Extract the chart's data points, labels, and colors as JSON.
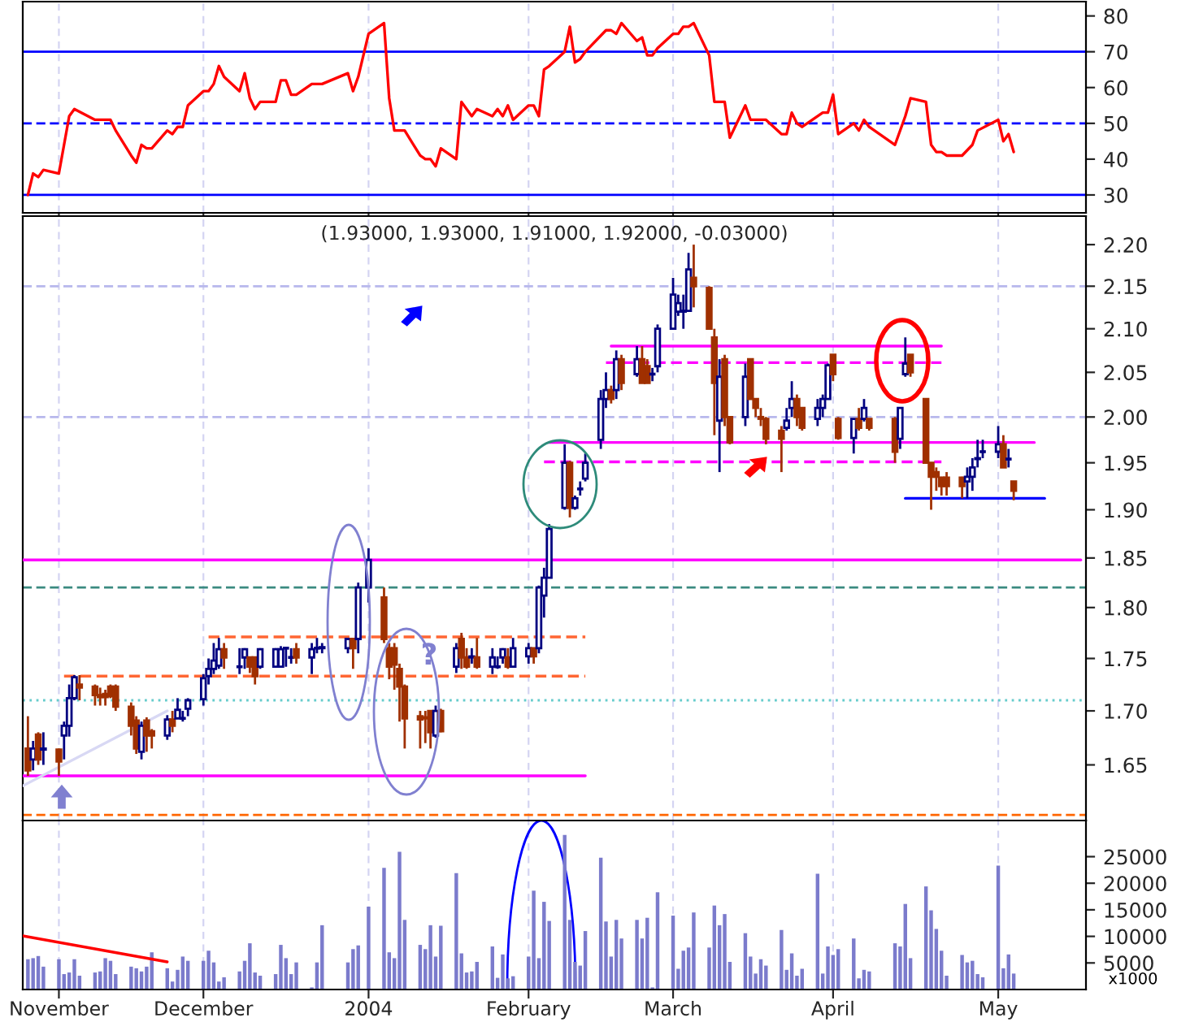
{
  "chart_data": [
    {
      "type": "line",
      "xlim": [
        "2003-10-27",
        "2004-05-20"
      ],
      "ylim": [
        25,
        84
      ],
      "yticks": [
        30,
        40,
        50,
        60,
        70,
        80
      ],
      "grid": "x",
      "tick_labels": "y",
      "xticks": [
        {
          "value": "2003-11-03",
          "label": null
        },
        {
          "value": "2003-12-01",
          "label": null
        },
        {
          "value": "2004-01-02",
          "label": null
        },
        {
          "value": "2004-02-02",
          "label": null
        },
        {
          "value": "2004-03-01",
          "label": null
        },
        {
          "value": "2004-04-01",
          "label": null
        },
        {
          "value": "2004-05-03",
          "label": null
        }
      ],
      "ref_lines": [
        {
          "axis": "y",
          "value": 70,
          "color": "#0000ff",
          "line_style": "solid"
        },
        {
          "axis": "y",
          "value": 50,
          "color": "#0000ff",
          "line_style": "dashed"
        },
        {
          "axis": "y",
          "value": 30,
          "color": "#0000ff",
          "line_style": "solid"
        }
      ],
      "series": [
        {
          "color": "#ff0000",
          "x": [
            "2003-10-28",
            "2003-10-29",
            "2003-10-30",
            "2003-10-31",
            "2003-11-03",
            "2003-11-04",
            "2003-11-05",
            "2003-11-06",
            "2003-11-10",
            "2003-11-11",
            "2003-11-13",
            "2003-11-14",
            "2003-11-17",
            "2003-11-18",
            "2003-11-19",
            "2003-11-20",
            "2003-11-21",
            "2003-11-24",
            "2003-11-25",
            "2003-11-26",
            "2003-11-27",
            "2003-11-28",
            "2003-12-01",
            "2003-12-02",
            "2003-12-03",
            "2003-12-04",
            "2003-12-05",
            "2003-12-08",
            "2003-12-09",
            "2003-12-10",
            "2003-12-11",
            "2003-12-12",
            "2003-12-15",
            "2003-12-16",
            "2003-12-17",
            "2003-12-18",
            "2003-12-19",
            "2003-12-22",
            "2003-12-23",
            "2003-12-24",
            "2003-12-29",
            "2003-12-30",
            "2003-12-31",
            "2004-01-02",
            "2004-01-05",
            "2004-01-06",
            "2004-01-07",
            "2004-01-08",
            "2004-01-09",
            "2004-01-12",
            "2004-01-13",
            "2004-01-14",
            "2004-01-15",
            "2004-01-16",
            "2004-01-19",
            "2004-01-20",
            "2004-01-21",
            "2004-01-22",
            "2004-01-23",
            "2004-01-26",
            "2004-01-27",
            "2004-01-28",
            "2004-01-29",
            "2004-01-30",
            "2004-02-02",
            "2004-02-03",
            "2004-02-04",
            "2004-02-05",
            "2004-02-06",
            "2004-02-09",
            "2004-02-10",
            "2004-02-11",
            "2004-02-12",
            "2004-02-13",
            "2004-02-17",
            "2004-02-18",
            "2004-02-19",
            "2004-02-20",
            "2004-02-23",
            "2004-02-24",
            "2004-02-25",
            "2004-02-26",
            "2004-02-27",
            "2004-03-01",
            "2004-03-02",
            "2004-03-03",
            "2004-03-04",
            "2004-03-05",
            "2004-03-08",
            "2004-03-09",
            "2004-03-11",
            "2004-03-12",
            "2004-03-15",
            "2004-03-16",
            "2004-03-18",
            "2004-03-19",
            "2004-03-22",
            "2004-03-23",
            "2004-03-24",
            "2004-03-25",
            "2004-03-26",
            "2004-03-30",
            "2004-03-31",
            "2004-04-01",
            "2004-04-02",
            "2004-04-05",
            "2004-04-06",
            "2004-04-07",
            "2004-04-08",
            "2004-04-13",
            "2004-04-15",
            "2004-04-16",
            "2004-04-19",
            "2004-04-20",
            "2004-04-21",
            "2004-04-22",
            "2004-04-23",
            "2004-04-26",
            "2004-04-28",
            "2004-04-29",
            "2004-05-03",
            "2004-05-04",
            "2004-05-05",
            "2004-05-06"
          ],
          "values": [
            30,
            36,
            35,
            37,
            36,
            44,
            52,
            54,
            51,
            51,
            51,
            48,
            41,
            39,
            44,
            43,
            43,
            48,
            47,
            49,
            49,
            55,
            59,
            59,
            61,
            66,
            63,
            59,
            64,
            57,
            54,
            56,
            56,
            62,
            62,
            58,
            58,
            61,
            61,
            61,
            64,
            59,
            63,
            75,
            78,
            57,
            48,
            48,
            48,
            41,
            40,
            40,
            38,
            43,
            40,
            56,
            54,
            52,
            54,
            52,
            54,
            52,
            55,
            51,
            55,
            55,
            52,
            65,
            66,
            70,
            77,
            67,
            68,
            70,
            76,
            76,
            75,
            78,
            73,
            74,
            69,
            69,
            71,
            75,
            75,
            77,
            77,
            78,
            69,
            56,
            56,
            46,
            55,
            51,
            51,
            51,
            47,
            47,
            53,
            50,
            49,
            53,
            53,
            58,
            47,
            50,
            48,
            51,
            49,
            44,
            52,
            57,
            56,
            44,
            42,
            42,
            41,
            41,
            44,
            48,
            51,
            45,
            47,
            42
          ]
        }
      ]
    },
    {
      "type": "candlestick",
      "title": "(1.93000, 1.93000, 1.91000, 1.92000, -0.03000)",
      "log": true,
      "xlim": [
        "2003-10-27",
        "2004-05-20"
      ],
      "ylim": [
        1.6,
        2.235
      ],
      "yticks": [
        {
          "value": 1.65,
          "label": "1.65"
        },
        {
          "value": 1.7,
          "label": "1.70"
        },
        {
          "value": 1.75,
          "label": "1.75"
        },
        {
          "value": 1.8,
          "label": "1.80"
        },
        {
          "value": 1.85,
          "label": "1.85"
        },
        {
          "value": 1.9,
          "label": "1.90"
        },
        {
          "value": 1.95,
          "label": "1.95"
        },
        {
          "value": 2.0,
          "label": "2.00"
        },
        {
          "value": 2.05,
          "label": "2.05"
        },
        {
          "value": 2.1,
          "label": "2.10"
        },
        {
          "value": 2.15,
          "label": "2.15"
        },
        {
          "value": 2.2,
          "label": "2.20"
        }
      ],
      "grid": "x",
      "tick_labels": "y",
      "xticks": [
        {
          "value": "2003-11-03",
          "label": null
        },
        {
          "value": "2003-12-01",
          "label": null
        },
        {
          "value": "2004-01-02",
          "label": null
        },
        {
          "value": "2004-02-02",
          "label": null
        },
        {
          "value": "2004-03-01",
          "label": null
        },
        {
          "value": "2004-04-01",
          "label": null
        },
        {
          "value": "2004-05-03",
          "label": null
        }
      ],
      "x": [
        "2003-10-28",
        "2003-10-29",
        "2003-10-30",
        "2003-10-31",
        "2003-11-03",
        "2003-11-04",
        "2003-11-05",
        "2003-11-06",
        "2003-11-07",
        "2003-11-10",
        "2003-11-11",
        "2003-11-12",
        "2003-11-13",
        "2003-11-14",
        "2003-11-17",
        "2003-11-18",
        "2003-11-19",
        "2003-11-20",
        "2003-11-21",
        "2003-11-24",
        "2003-11-25",
        "2003-11-26",
        "2003-11-27",
        "2003-11-28",
        "2003-12-01",
        "2003-12-02",
        "2003-12-03",
        "2003-12-04",
        "2003-12-05",
        "2003-12-08",
        "2003-12-09",
        "2003-12-10",
        "2003-12-11",
        "2003-12-12",
        "2003-12-15",
        "2003-12-16",
        "2003-12-17",
        "2003-12-18",
        "2003-12-19",
        "2003-12-22",
        "2003-12-23",
        "2003-12-24",
        "2003-12-29",
        "2003-12-30",
        "2003-12-31",
        "2004-01-02",
        "2004-01-05",
        "2004-01-06",
        "2004-01-07",
        "2004-01-08",
        "2004-01-09",
        "2004-01-12",
        "2004-01-13",
        "2004-01-14",
        "2004-01-15",
        "2004-01-16",
        "2004-01-19",
        "2004-01-20",
        "2004-01-21",
        "2004-01-22",
        "2004-01-23",
        "2004-01-26",
        "2004-01-27",
        "2004-01-28",
        "2004-01-29",
        "2004-01-30",
        "2004-02-02",
        "2004-02-03",
        "2004-02-04",
        "2004-02-05",
        "2004-02-06",
        "2004-02-09",
        "2004-02-10",
        "2004-02-11",
        "2004-02-12",
        "2004-02-13",
        "2004-02-16",
        "2004-02-17",
        "2004-02-18",
        "2004-02-19",
        "2004-02-20",
        "2004-02-23",
        "2004-02-24",
        "2004-02-25",
        "2004-02-26",
        "2004-02-27",
        "2004-03-01",
        "2004-03-02",
        "2004-03-03",
        "2004-03-04",
        "2004-03-05",
        "2004-03-08",
        "2004-03-09",
        "2004-03-10",
        "2004-03-11",
        "2004-03-12",
        "2004-03-15",
        "2004-03-16",
        "2004-03-17",
        "2004-03-18",
        "2004-03-19",
        "2004-03-22",
        "2004-03-23",
        "2004-03-24",
        "2004-03-25",
        "2004-03-26",
        "2004-03-29",
        "2004-03-30",
        "2004-03-31",
        "2004-04-01",
        "2004-04-02",
        "2004-04-05",
        "2004-04-06",
        "2004-04-07",
        "2004-04-08",
        "2004-04-13",
        "2004-04-14",
        "2004-04-15",
        "2004-04-16",
        "2004-04-19",
        "2004-04-20",
        "2004-04-21",
        "2004-04-22",
        "2004-04-23",
        "2004-04-26",
        "2004-04-27",
        "2004-04-28",
        "2004-04-29",
        "2004-04-30",
        "2004-05-03",
        "2004-05-04",
        "2004-05-05",
        "2004-05-06"
      ],
      "ohlc": [
        [
          1.665,
          1.695,
          1.64,
          1.645
        ],
        [
          1.655,
          1.672,
          1.645,
          1.665
        ],
        [
          1.678,
          1.68,
          1.65,
          1.655
        ],
        [
          1.664,
          1.68,
          1.65,
          1.665
        ],
        [
          1.664,
          1.665,
          1.64,
          1.653
        ],
        [
          1.677,
          1.69,
          1.655,
          1.686
        ],
        [
          1.686,
          1.725,
          1.676,
          1.712
        ],
        [
          1.712,
          1.734,
          1.71,
          1.732
        ],
        [
          1.725,
          1.734,
          1.71,
          1.722
        ],
        [
          1.723,
          1.725,
          1.705,
          1.715
        ],
        [
          1.715,
          1.722,
          1.705,
          1.713
        ],
        [
          1.716,
          1.72,
          1.705,
          1.713
        ],
        [
          1.723,
          1.725,
          1.712,
          1.714
        ],
        [
          1.723,
          1.725,
          1.7,
          1.704
        ],
        [
          1.704,
          1.708,
          1.677,
          1.686
        ],
        [
          1.691,
          1.695,
          1.66,
          1.665
        ],
        [
          1.662,
          1.69,
          1.655,
          1.686
        ],
        [
          1.691,
          1.694,
          1.662,
          1.677
        ],
        [
          1.681,
          1.683,
          1.665,
          1.677
        ],
        [
          1.677,
          1.696,
          1.673,
          1.692
        ],
        [
          1.692,
          1.7,
          1.68,
          1.686
        ],
        [
          1.693,
          1.712,
          1.693,
          1.701
        ],
        [
          1.693,
          1.7,
          1.69,
          1.693
        ],
        [
          1.702,
          1.712,
          1.695,
          1.71
        ],
        [
          1.711,
          1.735,
          1.705,
          1.731
        ],
        [
          1.733,
          1.75,
          1.725,
          1.74
        ],
        [
          1.74,
          1.765,
          1.735,
          1.748
        ],
        [
          1.743,
          1.77,
          1.74,
          1.759
        ],
        [
          1.759,
          1.765,
          1.74,
          1.751
        ],
        [
          1.742,
          1.76,
          1.735,
          1.742
        ],
        [
          1.751,
          1.76,
          1.74,
          1.759
        ],
        [
          1.751,
          1.751,
          1.736,
          1.742
        ],
        [
          1.751,
          1.751,
          1.725,
          1.733
        ],
        [
          1.742,
          1.76,
          1.74,
          1.759
        ],
        [
          1.742,
          1.76,
          1.742,
          1.759
        ],
        [
          1.742,
          1.762,
          1.742,
          1.759
        ],
        [
          1.76,
          1.76,
          1.742,
          1.76
        ],
        [
          1.751,
          1.76,
          1.745,
          1.751
        ],
        [
          1.759,
          1.765,
          1.745,
          1.751
        ],
        [
          1.751,
          1.765,
          1.735,
          1.759
        ],
        [
          1.76,
          1.77,
          1.755,
          1.76
        ],
        [
          1.76,
          1.765,
          1.755,
          1.761
        ],
        [
          1.76,
          1.77,
          1.755,
          1.769
        ],
        [
          1.769,
          1.77,
          1.74,
          1.76
        ],
        [
          1.769,
          1.825,
          1.755,
          1.82
        ],
        [
          1.82,
          1.86,
          1.805,
          1.848
        ],
        [
          1.81,
          1.82,
          1.765,
          1.769
        ],
        [
          1.76,
          1.765,
          1.73,
          1.742
        ],
        [
          1.76,
          1.765,
          1.72,
          1.744
        ],
        [
          1.74,
          1.745,
          1.69,
          1.723
        ],
        [
          1.723,
          1.725,
          1.665,
          1.693
        ],
        [
          1.695,
          1.7,
          1.665,
          1.692
        ],
        [
          1.694,
          1.7,
          1.67,
          1.693
        ],
        [
          1.7,
          1.7,
          1.665,
          1.68
        ],
        [
          1.677,
          1.705,
          1.675,
          1.7
        ],
        [
          1.7,
          1.702,
          1.68,
          1.681
        ],
        [
          1.742,
          1.765,
          1.736,
          1.76
        ],
        [
          1.769,
          1.775,
          1.74,
          1.751
        ],
        [
          1.751,
          1.76,
          1.74,
          1.742
        ],
        [
          1.751,
          1.76,
          1.745,
          1.752
        ],
        [
          1.751,
          1.77,
          1.74,
          1.742
        ],
        [
          1.742,
          1.76,
          1.735,
          1.751
        ],
        [
          1.742,
          1.752,
          1.74,
          1.742
        ],
        [
          1.751,
          1.76,
          1.745,
          1.759
        ],
        [
          1.751,
          1.76,
          1.74,
          1.742
        ],
        [
          1.742,
          1.77,
          1.742,
          1.76
        ],
        [
          1.752,
          1.765,
          1.745,
          1.76
        ],
        [
          1.76,
          1.76,
          1.745,
          1.752
        ],
        [
          1.76,
          1.822,
          1.755,
          1.82
        ],
        [
          1.812,
          1.84,
          1.79,
          1.83
        ],
        [
          1.83,
          1.885,
          1.83,
          1.88
        ],
        [
          1.902,
          1.97,
          1.9,
          1.95
        ],
        [
          1.95,
          1.952,
          1.892,
          1.902
        ],
        [
          1.902,
          1.915,
          1.9,
          1.912
        ],
        [
          1.922,
          1.93,
          1.915,
          1.922
        ],
        [
          1.933,
          1.96,
          1.93,
          1.95
        ],
        [
          1.975,
          2.03,
          1.965,
          2.02
        ],
        [
          2.02,
          2.05,
          2.01,
          2.03
        ],
        [
          2.03,
          2.035,
          2.015,
          2.02
        ],
        [
          2.03,
          2.075,
          2.02,
          2.065
        ],
        [
          2.065,
          2.07,
          2.03,
          2.038
        ],
        [
          2.048,
          2.08,
          2.045,
          2.065
        ],
        [
          2.065,
          2.08,
          2.038,
          2.038
        ],
        [
          2.057,
          2.065,
          2.038,
          2.038
        ],
        [
          2.048,
          2.055,
          2.04,
          2.048
        ],
        [
          2.057,
          2.105,
          2.05,
          2.1
        ],
        [
          2.1,
          2.16,
          2.1,
          2.14
        ],
        [
          2.12,
          2.14,
          2.115,
          2.13
        ],
        [
          2.12,
          2.14,
          2.1,
          2.121
        ],
        [
          2.121,
          2.19,
          2.12,
          2.17
        ],
        [
          2.16,
          2.2,
          2.125,
          2.15
        ],
        [
          2.148,
          2.15,
          2.1,
          2.1
        ],
        [
          2.09,
          2.1,
          1.98,
          2.038
        ],
        [
          1.996,
          2.065,
          1.94,
          2.045
        ],
        [
          2.065,
          2.07,
          1.99,
          2.0
        ],
        [
          2.0,
          2.0,
          1.97,
          1.972
        ],
        [
          2.0,
          2.06,
          1.99,
          2.045
        ],
        [
          2.065,
          2.065,
          2.02,
          2.02
        ],
        [
          2.02,
          2.02,
          2.0,
          2.01
        ],
        [
          2.0,
          2.01,
          1.99,
          1.998
        ],
        [
          1.998,
          2.0,
          1.97,
          1.976
        ],
        [
          1.985,
          1.99,
          1.94,
          1.976
        ],
        [
          1.988,
          2.01,
          1.985,
          1.996
        ],
        [
          2.01,
          2.04,
          2.0,
          2.02
        ],
        [
          2.02,
          2.025,
          1.99,
          2.0
        ],
        [
          2.01,
          2.01,
          1.985,
          1.988
        ],
        [
          1.998,
          2.02,
          1.99,
          2.01
        ],
        [
          2.01,
          2.025,
          2.0,
          2.02
        ],
        [
          2.02,
          2.06,
          2.02,
          2.058
        ],
        [
          2.07,
          2.07,
          2.04,
          2.048
        ],
        [
          1.998,
          2.0,
          1.975,
          1.977
        ],
        [
          1.977,
          1.998,
          1.96,
          1.998
        ],
        [
          1.998,
          2.01,
          1.985,
          1.988
        ],
        [
          1.998,
          2.02,
          1.995,
          2.01
        ],
        [
          1.998,
          1.998,
          1.985,
          1.988
        ],
        [
          1.998,
          2.0,
          1.95,
          1.962
        ],
        [
          1.976,
          2.01,
          1.965,
          2.01
        ],
        [
          2.048,
          2.09,
          2.045,
          2.06
        ],
        [
          2.07,
          2.07,
          2.045,
          2.05
        ],
        [
          2.02,
          2.02,
          1.95,
          1.95
        ],
        [
          1.95,
          1.95,
          1.9,
          1.935
        ],
        [
          1.94,
          1.945,
          1.92,
          1.935
        ],
        [
          1.934,
          1.935,
          1.915,
          1.925
        ],
        [
          1.934,
          1.94,
          1.915,
          1.925
        ],
        [
          1.934,
          1.935,
          1.912,
          1.925
        ],
        [
          1.93,
          1.945,
          1.912,
          1.935
        ],
        [
          1.935,
          1.955,
          1.92,
          1.945
        ],
        [
          1.954,
          1.975,
          1.945,
          1.955
        ],
        [
          1.962,
          1.975,
          1.955,
          1.962
        ],
        [
          1.962,
          1.99,
          1.955,
          1.97
        ],
        [
          1.97,
          1.98,
          1.945,
          1.945
        ],
        [
          1.954,
          1.965,
          1.945,
          1.954
        ],
        [
          1.93,
          1.93,
          1.91,
          1.92
        ]
      ],
      "ref_lines": [
        {
          "axis": "y",
          "value": 2.15,
          "color": "#b8b8ec",
          "line_style": "dashed"
        },
        {
          "axis": "y",
          "value": 2.0,
          "color": "#b8b8ec",
          "line_style": "dashed"
        },
        {
          "axis": "y",
          "value": 1.82,
          "color": "#3a8a80",
          "line_style": "dashed"
        },
        {
          "axis": "y",
          "value": 1.71,
          "color": "#66cccc",
          "line_style": "dotted"
        },
        {
          "axis": "y",
          "value": 1.605,
          "color": "#ff6600",
          "line_style": "dashed"
        }
      ],
      "series": [
        {
          "type": "line",
          "x": [
            "2003-10-27",
            "2004-05-19"
          ],
          "values": [
            1.848,
            1.848
          ],
          "color": "#ff00ff"
        },
        {
          "type": "line",
          "x": [
            "2003-10-27",
            "2004-02-13"
          ],
          "values": [
            1.64,
            1.64
          ],
          "color": "#ff00ff"
        },
        {
          "type": "line",
          "x": [
            "2003-12-02",
            "2004-02-13"
          ],
          "values": [
            1.771,
            1.771
          ],
          "color": "#ff6633",
          "line_style": "dashed"
        },
        {
          "type": "line",
          "x": [
            "2003-11-04",
            "2004-02-13"
          ],
          "values": [
            1.733,
            1.733
          ],
          "color": "#ff6633",
          "line_style": "dashed"
        },
        {
          "type": "line",
          "x": [
            "2004-02-18",
            "2004-04-22"
          ],
          "values": [
            2.08,
            2.08
          ],
          "color": "#ff00ff"
        },
        {
          "type": "line",
          "x": [
            "2004-02-17",
            "2004-04-22"
          ],
          "values": [
            2.061,
            2.061
          ],
          "color": "#ff00ff",
          "line_style": "dashed"
        },
        {
          "type": "line",
          "x": [
            "2004-02-06",
            "2004-05-10"
          ],
          "values": [
            1.972,
            1.972
          ],
          "color": "#ff00ff"
        },
        {
          "type": "line",
          "x": [
            "2004-02-05",
            "2004-04-22"
          ],
          "values": [
            1.951,
            1.951
          ],
          "color": "#ff00ff",
          "line_style": "dashed"
        },
        {
          "type": "line",
          "x": [
            "2004-04-15",
            "2004-05-12"
          ],
          "values": [
            1.912,
            1.912
          ],
          "color": "#0000ff"
        },
        {
          "type": "line",
          "x": [
            "2003-10-27",
            "2003-11-24"
          ],
          "values": [
            1.631,
            1.7
          ],
          "color": "#d8d8f4"
        }
      ],
      "annotations": [
        "?"
      ]
    },
    {
      "type": "bar",
      "xlim": [
        "2003-10-27",
        "2004-05-20"
      ],
      "ylim": [
        0,
        31800
      ],
      "yticks": [
        5000,
        10000,
        15000,
        20000,
        25000
      ],
      "grid": "x",
      "xticks": [
        {
          "value": "2003-11-03",
          "label": "November"
        },
        {
          "value": "2003-12-01",
          "label": "December"
        },
        {
          "value": "2004-01-02",
          "label": "2004"
        },
        {
          "value": "2004-02-02",
          "label": "February"
        },
        {
          "value": "2004-03-01",
          "label": "March"
        },
        {
          "value": "2004-04-01",
          "label": "April"
        },
        {
          "value": "2004-05-03",
          "label": "May"
        }
      ],
      "x": [
        "2003-10-28",
        "2003-10-29",
        "2003-10-30",
        "2003-10-31",
        "2003-11-03",
        "2003-11-04",
        "2003-11-05",
        "2003-11-06",
        "2003-11-07",
        "2003-11-10",
        "2003-11-11",
        "2003-11-12",
        "2003-11-13",
        "2003-11-14",
        "2003-11-17",
        "2003-11-18",
        "2003-11-19",
        "2003-11-20",
        "2003-11-21",
        "2003-11-24",
        "2003-11-25",
        "2003-11-26",
        "2003-11-27",
        "2003-11-28",
        "2003-12-01",
        "2003-12-02",
        "2003-12-03",
        "2003-12-04",
        "2003-12-05",
        "2003-12-08",
        "2003-12-09",
        "2003-12-10",
        "2003-12-11",
        "2003-12-12",
        "2003-12-15",
        "2003-12-16",
        "2003-12-17",
        "2003-12-18",
        "2003-12-19",
        "2003-12-22",
        "2003-12-23",
        "2003-12-24",
        "2003-12-29",
        "2003-12-30",
        "2003-12-31",
        "2004-01-02",
        "2004-01-05",
        "2004-01-06",
        "2004-01-07",
        "2004-01-08",
        "2004-01-09",
        "2004-01-12",
        "2004-01-13",
        "2004-01-14",
        "2004-01-15",
        "2004-01-16",
        "2004-01-19",
        "2004-01-20",
        "2004-01-21",
        "2004-01-22",
        "2004-01-23",
        "2004-01-26",
        "2004-01-27",
        "2004-01-28",
        "2004-01-29",
        "2004-01-30",
        "2004-02-02",
        "2004-02-03",
        "2004-02-04",
        "2004-02-05",
        "2004-02-06",
        "2004-02-09",
        "2004-02-10",
        "2004-02-11",
        "2004-02-12",
        "2004-02-13",
        "2004-02-16",
        "2004-02-17",
        "2004-02-18",
        "2004-02-19",
        "2004-02-20",
        "2004-02-23",
        "2004-02-24",
        "2004-02-25",
        "2004-02-26",
        "2004-02-27",
        "2004-03-01",
        "2004-03-02",
        "2004-03-03",
        "2004-03-04",
        "2004-03-05",
        "2004-03-08",
        "2004-03-09",
        "2004-03-10",
        "2004-03-11",
        "2004-03-12",
        "2004-03-15",
        "2004-03-16",
        "2004-03-17",
        "2004-03-18",
        "2004-03-19",
        "2004-03-22",
        "2004-03-23",
        "2004-03-24",
        "2004-03-25",
        "2004-03-26",
        "2004-03-29",
        "2004-03-30",
        "2004-03-31",
        "2004-04-01",
        "2004-04-02",
        "2004-04-05",
        "2004-04-06",
        "2004-04-07",
        "2004-04-08",
        "2004-04-13",
        "2004-04-14",
        "2004-04-15",
        "2004-04-16",
        "2004-04-19",
        "2004-04-20",
        "2004-04-21",
        "2004-04-22",
        "2004-04-23",
        "2004-04-26",
        "2004-04-27",
        "2004-04-28",
        "2004-04-29",
        "2004-04-30",
        "2004-05-03",
        "2004-05-04",
        "2004-05-05",
        "2004-05-06"
      ],
      "series": [
        {
          "type": "bar",
          "color": "#7b7bcc",
          "values": [
            5700,
            5900,
            6300,
            4300,
            5700,
            2900,
            3200,
            5700,
            2600,
            3200,
            3400,
            5900,
            5400,
            2900,
            4300,
            4000,
            3400,
            4300,
            7000,
            4000,
            1500,
            3700,
            6200,
            5400,
            5400,
            7300,
            5100,
            1500,
            2300,
            3400,
            5400,
            8700,
            3200,
            2600,
            2900,
            8400,
            5900,
            2900,
            5100,
            400,
            5100,
            12100,
            5100,
            7600,
            8300,
            15600,
            22900,
            7000,
            5900,
            25900,
            13100,
            8400,
            7600,
            12100,
            6200,
            12000,
            21900,
            6800,
            3200,
            3400,
            5200,
            8100,
            2200,
            6600,
            2100,
            2500,
            6200,
            18600,
            5900,
            16500,
            12900,
            29100,
            13100,
            5200,
            4500,
            11000,
            24800,
            12800,
            6200,
            13100,
            9600,
            13100,
            9600,
            13500,
            400,
            18300,
            13900,
            3900,
            7300,
            7900,
            14500,
            7900,
            15800,
            12100,
            14200,
            5200,
            10600,
            6200,
            3000,
            5700,
            4500,
            11200,
            3700,
            6800,
            2600,
            3900,
            21800,
            3000,
            8100,
            6500,
            7600,
            9600,
            2100,
            3700,
            3400,
            8700,
            8100,
            16100,
            5900,
            19400,
            14900,
            11400,
            7300,
            2600,
            6500,
            5100,
            5400,
            2900,
            2300,
            23300,
            4000,
            6600,
            3000
          ]
        },
        {
          "type": "line",
          "x": [
            "2003-10-27",
            "2003-11-24"
          ],
          "values": [
            10100,
            5200
          ],
          "color": "#ff0000"
        }
      ],
      "annotations": [
        "x1000"
      ]
    }
  ]
}
